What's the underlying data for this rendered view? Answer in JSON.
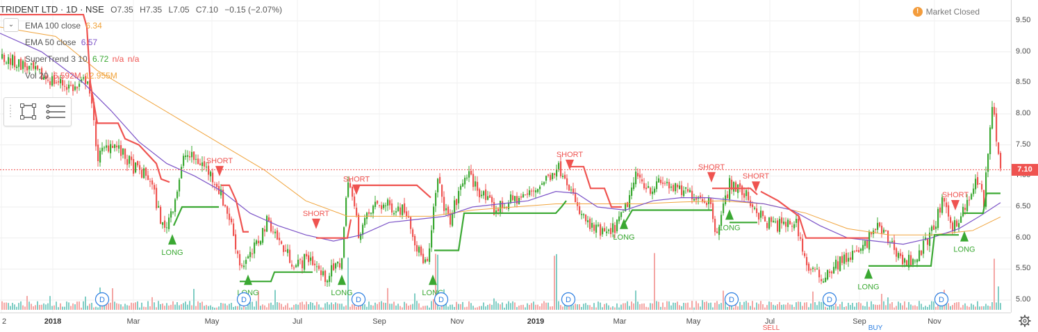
{
  "header": {
    "symbol": "TRIDENT LTD · 1D · NSE",
    "open": "O7.35",
    "high": "H7.35",
    "low": "L7.05",
    "close": "C7.10",
    "change": "−0.15 (−2.07%)",
    "market_status": "Market Closed",
    "warning_glyph": "!"
  },
  "indicators": [
    {
      "name": "EMA 100 close",
      "value": "6.34",
      "color": "#f0a33b"
    },
    {
      "name": "EMA 50 close",
      "value": "6.57",
      "color": "#7b52c7"
    },
    {
      "name": "SuperTrend 3 10",
      "value": "6.72",
      "extra": "n/a",
      "extra2": "n/a",
      "color": "#3aa832",
      "extra_color": "#ef5350"
    },
    {
      "name": "Vol 20",
      "value": "6.592M",
      "value2": "12.955M",
      "color": "#ef5350",
      "value2_color": "#f0a33b"
    }
  ],
  "collapse_glyph": "⌄",
  "price_scale": {
    "ticks": [
      "9.50",
      "9.00",
      "8.50",
      "8.00",
      "7.50",
      "7.00",
      "6.50",
      "6.00",
      "5.50",
      "5.00"
    ],
    "current_price": "7.10",
    "current_price_color": "#ef5350"
  },
  "time_scale": {
    "ticks": [
      {
        "label": "2",
        "major": false
      },
      {
        "label": "2018",
        "major": true
      },
      {
        "label": "Mar",
        "major": false
      },
      {
        "label": "May",
        "major": false
      },
      {
        "label": "Jul",
        "major": false
      },
      {
        "label": "Sep",
        "major": false
      },
      {
        "label": "Nov",
        "major": false
      },
      {
        "label": "2019",
        "major": true
      },
      {
        "label": "Mar",
        "major": false
      },
      {
        "label": "May",
        "major": false
      },
      {
        "label": "Jul",
        "major": false
      },
      {
        "label": "Sep",
        "major": false
      },
      {
        "label": "Nov",
        "major": false
      }
    ],
    "partial_labels": [
      "SELL",
      "BUY"
    ]
  },
  "signals": {
    "long_label": "LONG",
    "short_label": "SHORT",
    "dividend_label": "D"
  },
  "colors": {
    "up_candle": "#3aa832",
    "down_candle": "#ef5350",
    "supertrend_up": "#3aa832",
    "supertrend_down": "#ef5350",
    "ema50": "#7b52c7",
    "ema100": "#f0a33b",
    "vol_up": "#7fcdc4",
    "vol_down": "#f4a6a4",
    "dividend": "#2a7de1"
  },
  "icons": {
    "rect_tool": "rectangle-select-icon",
    "list_tool": "object-list-icon",
    "settings": "gear-icon"
  }
}
